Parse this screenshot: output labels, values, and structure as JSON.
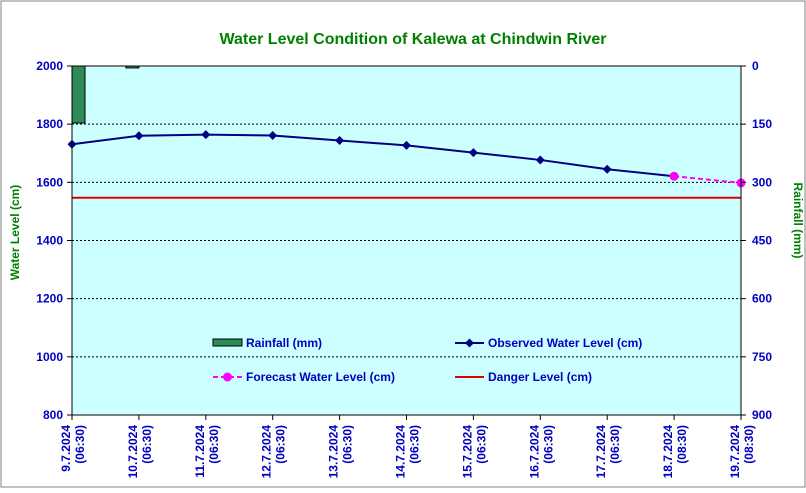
{
  "chart_data": {
    "type": "line",
    "title": "Water Level Condition of Kalewa at Chindwin River",
    "ylabel": "Water Level (cm)",
    "y2label": "Rainfall (mm)",
    "ylim": [
      800,
      2000
    ],
    "yticks": [
      800,
      1000,
      1200,
      1400,
      1600,
      1800,
      2000
    ],
    "y2lim": [
      0,
      900
    ],
    "y2ticks": [
      0,
      150,
      300,
      450,
      600,
      750,
      900
    ],
    "y2_inverted": true,
    "categories": [
      [
        "9.7.2024",
        "(06:30)"
      ],
      [
        "10.7.2024",
        "(06:30)"
      ],
      [
        "11.7.2024",
        "(06:30)"
      ],
      [
        "12.7.2024",
        "(06:30)"
      ],
      [
        "13.7.2024",
        "(06:30)"
      ],
      [
        "14.7.2024",
        "(06:30)"
      ],
      [
        "15.7.2024",
        "(06:30)"
      ],
      [
        "16.7.2024",
        "(06:30)"
      ],
      [
        "17.7.2024",
        "(06:30)"
      ],
      [
        "18.7.2024",
        "(08:30)"
      ],
      [
        "19.7.2024",
        "(08:30)"
      ]
    ],
    "grid": true,
    "series": [
      {
        "name": "Rainfall (mm)",
        "type": "bar",
        "axis": "right",
        "color": "#2e8b57",
        "values": [
          147,
          5,
          0,
          0,
          0,
          0,
          0,
          0,
          0,
          0,
          0
        ]
      },
      {
        "name": "Observed Water Level (cm)",
        "type": "line",
        "marker": "diamond",
        "color": "#000080",
        "values": [
          1731,
          1760,
          1764,
          1761,
          1744,
          1727,
          1702,
          1677,
          1645,
          1621,
          null
        ]
      },
      {
        "name": "Forecast Water Level (cm)",
        "type": "line",
        "style": "dashed",
        "marker": "circle",
        "color": "#ff00ff",
        "values": [
          null,
          null,
          null,
          null,
          null,
          null,
          null,
          null,
          null,
          1621,
          1598
        ]
      },
      {
        "name": "Danger Level (cm)",
        "type": "hline",
        "color": "#dd0000",
        "value": 1547
      }
    ],
    "colors": {
      "plot_background": "#ccffff",
      "title": "#008000",
      "axis_text": "#0000c0",
      "axis_title": "#008000"
    }
  }
}
